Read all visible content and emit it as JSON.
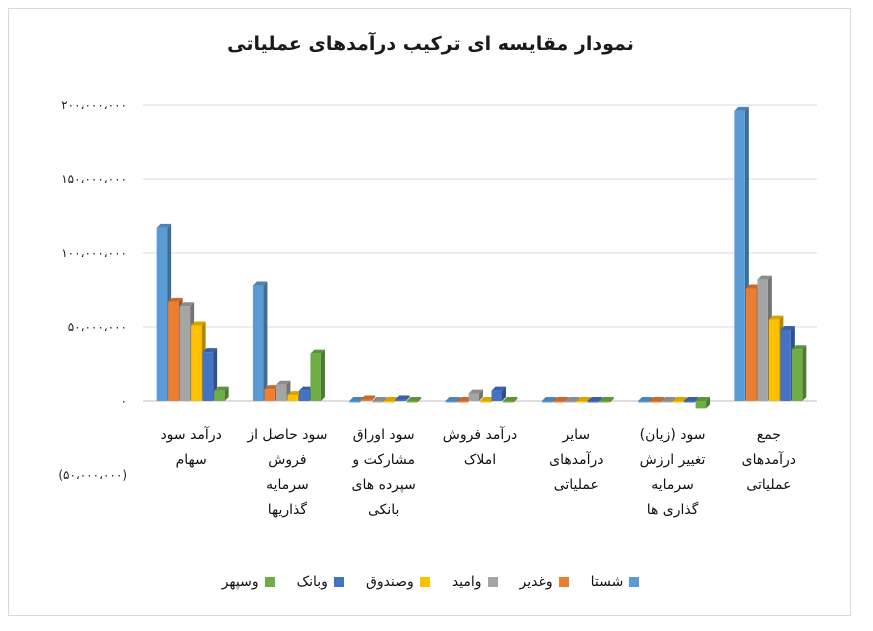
{
  "chart_data": {
    "type": "bar",
    "title": "نمودار مقایسه ای ترکیب درآمدهای عملیاتی",
    "categories": [
      [
        "درآمد سود",
        "سهام"
      ],
      [
        "سود حاصل از",
        "فروش",
        "سرمایه",
        "گذاریها"
      ],
      [
        "سود اوراق",
        "مشارکت و",
        "سپرده های",
        "بانکی"
      ],
      [
        "درآمد فروش",
        "املاک"
      ],
      [
        "سایر",
        "درآمدهای",
        "عملیاتی"
      ],
      [
        "سود (زیان)",
        "تغییر ارزش",
        "سرمایه",
        "گذاری ها"
      ],
      [
        "جمع",
        "درآمدهای",
        "عملیاتی"
      ]
    ],
    "series": [
      {
        "name": "شستا",
        "color": "#5b9bd5",
        "values": [
          117000000,
          78000000,
          0,
          0,
          0,
          0,
          196000000
        ]
      },
      {
        "name": "وغدیر",
        "color": "#ed7d31",
        "values": [
          67000000,
          8000000,
          1000000,
          0,
          0,
          0,
          76000000
        ]
      },
      {
        "name": "وامید",
        "color": "#a5a5a5",
        "values": [
          64000000,
          11000000,
          0,
          5000000,
          0,
          0,
          82000000
        ]
      },
      {
        "name": "وصندوق",
        "color": "#ffc000",
        "values": [
          51000000,
          4000000,
          0,
          0,
          0,
          0,
          55000000
        ]
      },
      {
        "name": "وبانک",
        "color": "#4472c4",
        "values": [
          33000000,
          7000000,
          1000000,
          7000000,
          0,
          0,
          48000000
        ]
      },
      {
        "name": "وسپهر",
        "color": "#70ad47",
        "values": [
          7000000,
          32000000,
          0,
          0,
          0,
          -5000000,
          35000000
        ]
      }
    ],
    "yticks": [
      {
        "value": 200000000,
        "label": "۲۰۰،۰۰۰،۰۰۰"
      },
      {
        "value": 150000000,
        "label": "۱۵۰،۰۰۰،۰۰۰"
      },
      {
        "value": 100000000,
        "label": "۱۰۰،۰۰۰،۰۰۰"
      },
      {
        "value": 50000000,
        "label": "۵۰،۰۰۰،۰۰۰"
      },
      {
        "value": 0,
        "label": "۰"
      },
      {
        "value": -50000000,
        "label": "(۵۰،۰۰۰،۰۰۰)"
      }
    ],
    "ylim": [
      -50000000,
      200000000
    ],
    "grid": true,
    "legend_position": "bottom"
  }
}
